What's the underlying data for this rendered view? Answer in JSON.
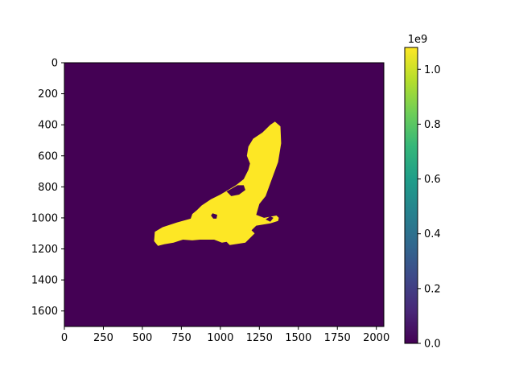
{
  "chart_data": {
    "type": "heatmap",
    "title": "",
    "xlabel": "",
    "ylabel": "",
    "image_extent": {
      "x": [
        0,
        2048
      ],
      "y": [
        0,
        1700
      ]
    },
    "y_inverted": true,
    "x_ticks": [
      0,
      250,
      500,
      750,
      1000,
      1250,
      1500,
      1750,
      2000
    ],
    "x_tick_labels": [
      "0",
      "250",
      "500",
      "750",
      "1000",
      "1250",
      "1500",
      "1750",
      "2000"
    ],
    "y_ticks": [
      0,
      200,
      400,
      600,
      800,
      1000,
      1200,
      1400,
      1600
    ],
    "y_tick_labels": [
      "0",
      "200",
      "400",
      "600",
      "800",
      "1000",
      "1200",
      "1400",
      "1600"
    ],
    "values_present": [
      0.0,
      1080000000.0
    ],
    "colormap": "viridis",
    "background_color": "#440154",
    "mask_color": "#fde725",
    "mask_value": 1080000000.0,
    "colorbar": {
      "range": [
        0.0,
        1080000000.0
      ],
      "offset_label": "1e9",
      "ticks": [
        0.0,
        200000000.0,
        400000000.0,
        600000000.0,
        800000000.0,
        1000000000.0
      ],
      "tick_labels": [
        "0.0",
        "0.2",
        "0.4",
        "0.6",
        "0.8",
        "1.0"
      ]
    },
    "regions": [
      {
        "value": 1080000000.0,
        "outline": [
          [
            1350,
            380
          ],
          [
            1385,
            410
          ],
          [
            1390,
            520
          ],
          [
            1370,
            640
          ],
          [
            1330,
            750
          ],
          [
            1290,
            860
          ],
          [
            1250,
            910
          ],
          [
            1230,
            980
          ],
          [
            1280,
            1000
          ],
          [
            1360,
            985
          ],
          [
            1375,
            1000
          ],
          [
            1370,
            1020
          ],
          [
            1320,
            1035
          ],
          [
            1230,
            1050
          ],
          [
            1200,
            1080
          ],
          [
            1220,
            1100
          ],
          [
            1190,
            1130
          ],
          [
            1160,
            1160
          ],
          [
            1060,
            1175
          ],
          [
            1040,
            1155
          ],
          [
            1010,
            1160
          ],
          [
            960,
            1140
          ],
          [
            870,
            1140
          ],
          [
            820,
            1145
          ],
          [
            760,
            1140
          ],
          [
            700,
            1160
          ],
          [
            640,
            1170
          ],
          [
            600,
            1180
          ],
          [
            575,
            1150
          ],
          [
            580,
            1090
          ],
          [
            630,
            1060
          ],
          [
            720,
            1030
          ],
          [
            810,
            1005
          ],
          [
            820,
            975
          ],
          [
            850,
            950
          ],
          [
            880,
            920
          ],
          [
            940,
            880
          ],
          [
            1000,
            850
          ],
          [
            1050,
            820
          ],
          [
            1100,
            790
          ],
          [
            1150,
            750
          ],
          [
            1180,
            690
          ],
          [
            1190,
            650
          ],
          [
            1170,
            600
          ],
          [
            1180,
            540
          ],
          [
            1210,
            490
          ],
          [
            1270,
            450
          ],
          [
            1320,
            400
          ]
        ]
      }
    ],
    "holes": [
      {
        "value": 0.0,
        "outline": [
          [
            950,
            970
          ],
          [
            980,
            980
          ],
          [
            975,
            1005
          ],
          [
            955,
            1005
          ],
          [
            940,
            985
          ]
        ]
      },
      {
        "value": 0.0,
        "outline": [
          [
            1040,
            830
          ],
          [
            1110,
            790
          ],
          [
            1150,
            790
          ],
          [
            1160,
            820
          ],
          [
            1120,
            850
          ],
          [
            1070,
            860
          ]
        ]
      },
      {
        "value": 0.0,
        "outline": [
          [
            1290,
            1010
          ],
          [
            1320,
            990
          ],
          [
            1340,
            1000
          ],
          [
            1320,
            1025
          ]
        ]
      }
    ]
  }
}
